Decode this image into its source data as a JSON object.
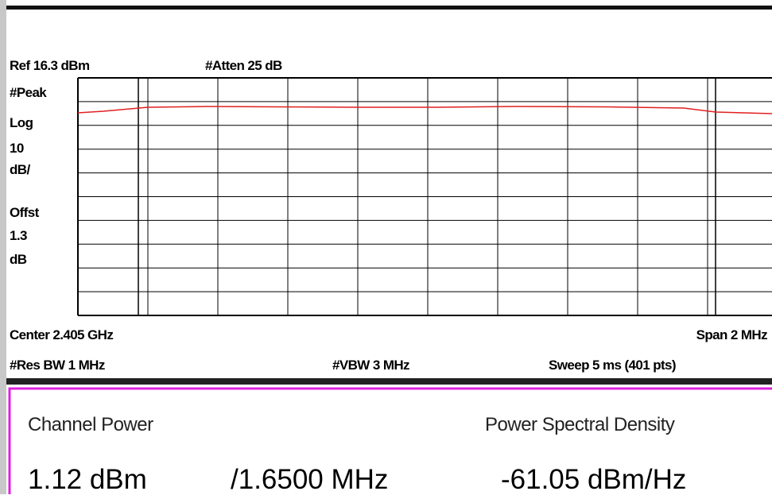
{
  "header": {
    "ref": "Ref 16.3 dBm",
    "atten": "#Atten 25 dB"
  },
  "scale_labels": [
    "#Peak",
    "Log",
    "10",
    "dB/",
    "Offst",
    "1.3",
    "dB"
  ],
  "footer": {
    "center": "Center 2.405 GHz",
    "span": "Span 2 MHz",
    "res_bw": "#Res BW 1 MHz",
    "vbw": "#VBW 3 MHz",
    "sweep": "Sweep 5 ms (401 pts)"
  },
  "results": {
    "channel_power_label": "Channel Power",
    "psd_label": "Power Spectral Density",
    "channel_power": "1.12 dBm",
    "bandwidth": "/1.6500 MHz",
    "psd": "-61.05 dBm/Hz"
  }
}
